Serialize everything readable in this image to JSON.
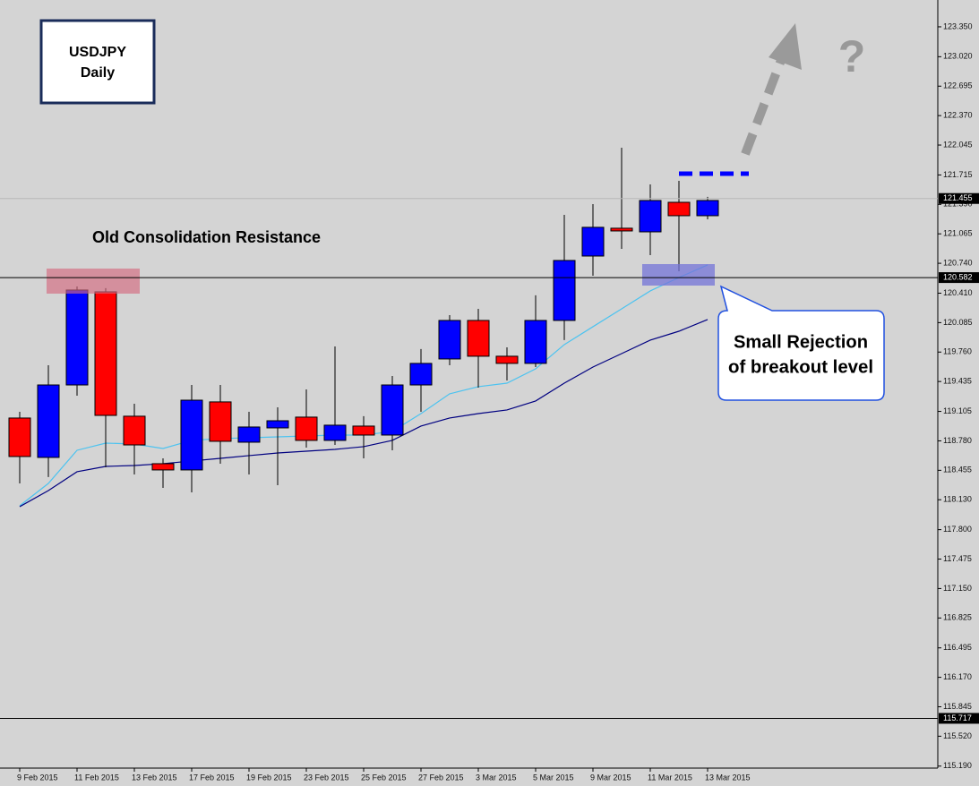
{
  "chart_data": {
    "type": "candlestick",
    "categories": [
      "9 Feb 2015",
      null,
      "11 Feb 2015",
      null,
      "13 Feb 2015",
      null,
      "17 Feb 2015",
      null,
      "19 Feb 2015",
      null,
      "23 Feb 2015",
      null,
      "25 Feb 2015",
      null,
      "27 Feb 2015",
      null,
      "3 Mar 2015",
      null,
      "5 Mar 2015",
      null,
      "9 Mar 2015",
      null,
      "11 Mar 2015",
      null,
      "13 Mar 2015"
    ],
    "open": [
      119.032,
      118.597,
      119.397,
      120.425,
      119.052,
      118.528,
      118.459,
      119.21,
      118.765,
      118.923,
      119.042,
      118.785,
      118.943,
      118.844,
      119.397,
      119.684,
      120.109,
      119.714,
      119.635,
      120.109,
      120.82,
      121.127,
      121.087,
      121.413,
      121.265
    ],
    "high": [
      119.101,
      119.615,
      120.484,
      120.465,
      119.19,
      118.587,
      119.397,
      119.397,
      119.101,
      119.15,
      119.348,
      119.822,
      119.052,
      119.496,
      119.793,
      120.168,
      120.237,
      119.812,
      120.386,
      121.275,
      121.393,
      122.016,
      121.611,
      121.65,
      121.473
    ],
    "low": [
      118.31,
      118.38,
      119.279,
      118.488,
      118.409,
      118.261,
      118.212,
      118.528,
      118.409,
      118.291,
      118.706,
      118.735,
      118.587,
      118.676,
      119.101,
      119.615,
      119.368,
      119.447,
      119.595,
      119.892,
      120.603,
      120.899,
      120.83,
      120.652,
      121.225
    ],
    "close": [
      118.607,
      119.397,
      120.445,
      119.061,
      118.735,
      118.459,
      119.229,
      118.775,
      118.933,
      119.002,
      118.785,
      118.953,
      118.844,
      119.397,
      119.635,
      120.109,
      119.714,
      119.635,
      120.109,
      120.771,
      121.137,
      121.097,
      121.433,
      121.265,
      121.433
    ],
    "bull_color": "#0000ff",
    "bear_color": "#ff0000",
    "series": [
      {
        "color": "#4cc3f0",
        "values": [
          118.063,
          118.31,
          118.676,
          118.755,
          118.745,
          118.696,
          118.785,
          118.805,
          118.814,
          118.824,
          118.834,
          118.844,
          118.844,
          118.884,
          119.081,
          119.299,
          119.378,
          119.417,
          119.575,
          119.842,
          120.04,
          120.237,
          120.435,
          120.583,
          120.722
        ]
      },
      {
        "color": "#000080",
        "values": [
          118.054,
          118.231,
          118.439,
          118.498,
          118.508,
          118.528,
          118.558,
          118.587,
          118.617,
          118.646,
          118.666,
          118.686,
          118.716,
          118.785,
          118.943,
          119.032,
          119.081,
          119.121,
          119.22,
          119.417,
          119.595,
          119.743,
          119.892,
          119.99,
          120.119
        ]
      }
    ],
    "ylim": [
      115.168,
      123.646
    ],
    "yticks": [
      {
        "value": 123.35,
        "label": "123.350"
      },
      {
        "value": 123.02,
        "label": "123.020"
      },
      {
        "value": 122.695,
        "label": "122.695"
      },
      {
        "value": 122.37,
        "label": "122.370"
      },
      {
        "value": 122.045,
        "label": "122.045"
      },
      {
        "value": 121.715,
        "label": "121.715"
      },
      {
        "value": 121.39,
        "label": "121.390"
      },
      {
        "value": 121.065,
        "label": "121.065"
      },
      {
        "value": 120.74,
        "label": "120.740"
      },
      {
        "value": 120.41,
        "label": "120.410"
      },
      {
        "value": 120.085,
        "label": "120.085"
      },
      {
        "value": 119.76,
        "label": "119.760"
      },
      {
        "value": 119.435,
        "label": "119.435"
      },
      {
        "value": 119.105,
        "label": "119.105"
      },
      {
        "value": 118.78,
        "label": "118.780"
      },
      {
        "value": 118.455,
        "label": "118.455"
      },
      {
        "value": 118.13,
        "label": "118.130"
      },
      {
        "value": 117.8,
        "label": "117.800"
      },
      {
        "value": 117.475,
        "label": "117.475"
      },
      {
        "value": 117.15,
        "label": "117.150"
      },
      {
        "value": 116.825,
        "label": "116.825"
      },
      {
        "value": 116.495,
        "label": "116.495"
      },
      {
        "value": 116.17,
        "label": "116.170"
      },
      {
        "value": 115.845,
        "label": "115.845"
      },
      {
        "value": 115.52,
        "label": "115.520"
      },
      {
        "value": 115.19,
        "label": "115.190"
      }
    ],
    "price_levels": [
      121.455,
      120.582,
      115.717
    ],
    "badge": [
      "USDJPY",
      "Daily"
    ],
    "resistance_label": "Old Consolidation Resistance",
    "callout": [
      "Small Rejection",
      "of breakout level"
    ],
    "question": "?"
  }
}
